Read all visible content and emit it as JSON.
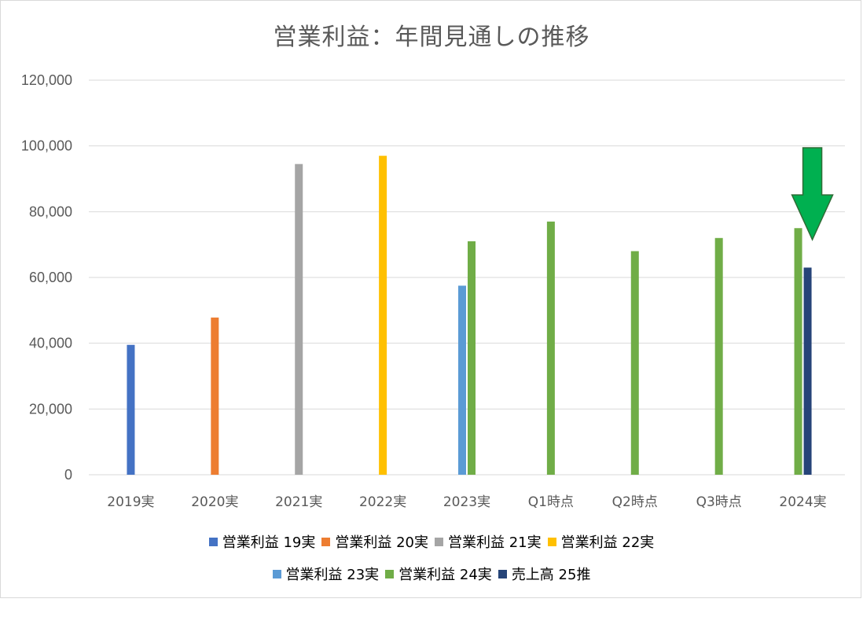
{
  "chart_data": {
    "type": "bar",
    "title": "営業利益：年間見通しの推移",
    "categories": [
      "2019実",
      "2020実",
      "2021実",
      "2022実",
      "2023実",
      "Q1時点",
      "Q2時点",
      "Q3時点",
      "2024実"
    ],
    "ylim": [
      0,
      120000
    ],
    "yticks": [
      "0",
      "20,000",
      "40,000",
      "60,000",
      "80,000",
      "100,000",
      "120,000"
    ],
    "ytick_values": [
      0,
      20000,
      40000,
      60000,
      80000,
      100000,
      120000
    ],
    "grid": true,
    "legend_position": "bottom",
    "series": [
      {
        "name": "営業利益 19実",
        "color": "#4472c4",
        "values": [
          39500,
          null,
          null,
          null,
          null,
          null,
          null,
          null,
          null
        ]
      },
      {
        "name": "営業利益 20実",
        "color": "#ed7d31",
        "values": [
          null,
          47800,
          null,
          null,
          null,
          null,
          null,
          null,
          null
        ]
      },
      {
        "name": "営業利益 21実",
        "color": "#a5a5a5",
        "values": [
          null,
          null,
          94500,
          null,
          null,
          null,
          null,
          null,
          null
        ]
      },
      {
        "name": "営業利益 22実",
        "color": "#ffc000",
        "values": [
          null,
          null,
          null,
          97000,
          null,
          null,
          null,
          null,
          null
        ]
      },
      {
        "name": "営業利益 23実",
        "color": "#5b9bd5",
        "values": [
          null,
          null,
          null,
          null,
          57500,
          null,
          null,
          null,
          null
        ]
      },
      {
        "name": "営業利益 24実",
        "color": "#70ad47",
        "values": [
          null,
          null,
          null,
          null,
          71000,
          77000,
          68000,
          72000,
          75000
        ]
      },
      {
        "name": "売上高 25推",
        "color": "#264478",
        "values": [
          null,
          null,
          null,
          null,
          null,
          null,
          null,
          null,
          63000
        ]
      }
    ],
    "annotation": {
      "type": "down-arrow",
      "color": "#00b050",
      "category": "2024実"
    }
  }
}
